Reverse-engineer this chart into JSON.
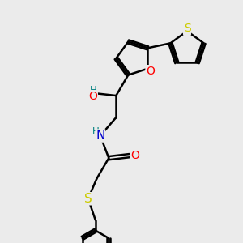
{
  "bg_color": "#ebebeb",
  "bond_color": "#000000",
  "bond_width": 1.8,
  "atom_colors": {
    "O": "#ff0000",
    "N": "#0000cd",
    "S": "#cccc00",
    "H": "#008080",
    "C": "#000000"
  },
  "font_size": 10,
  "figsize": [
    3.0,
    3.0
  ],
  "dpi": 100,
  "xlim": [
    0,
    10
  ],
  "ylim": [
    0,
    10
  ]
}
